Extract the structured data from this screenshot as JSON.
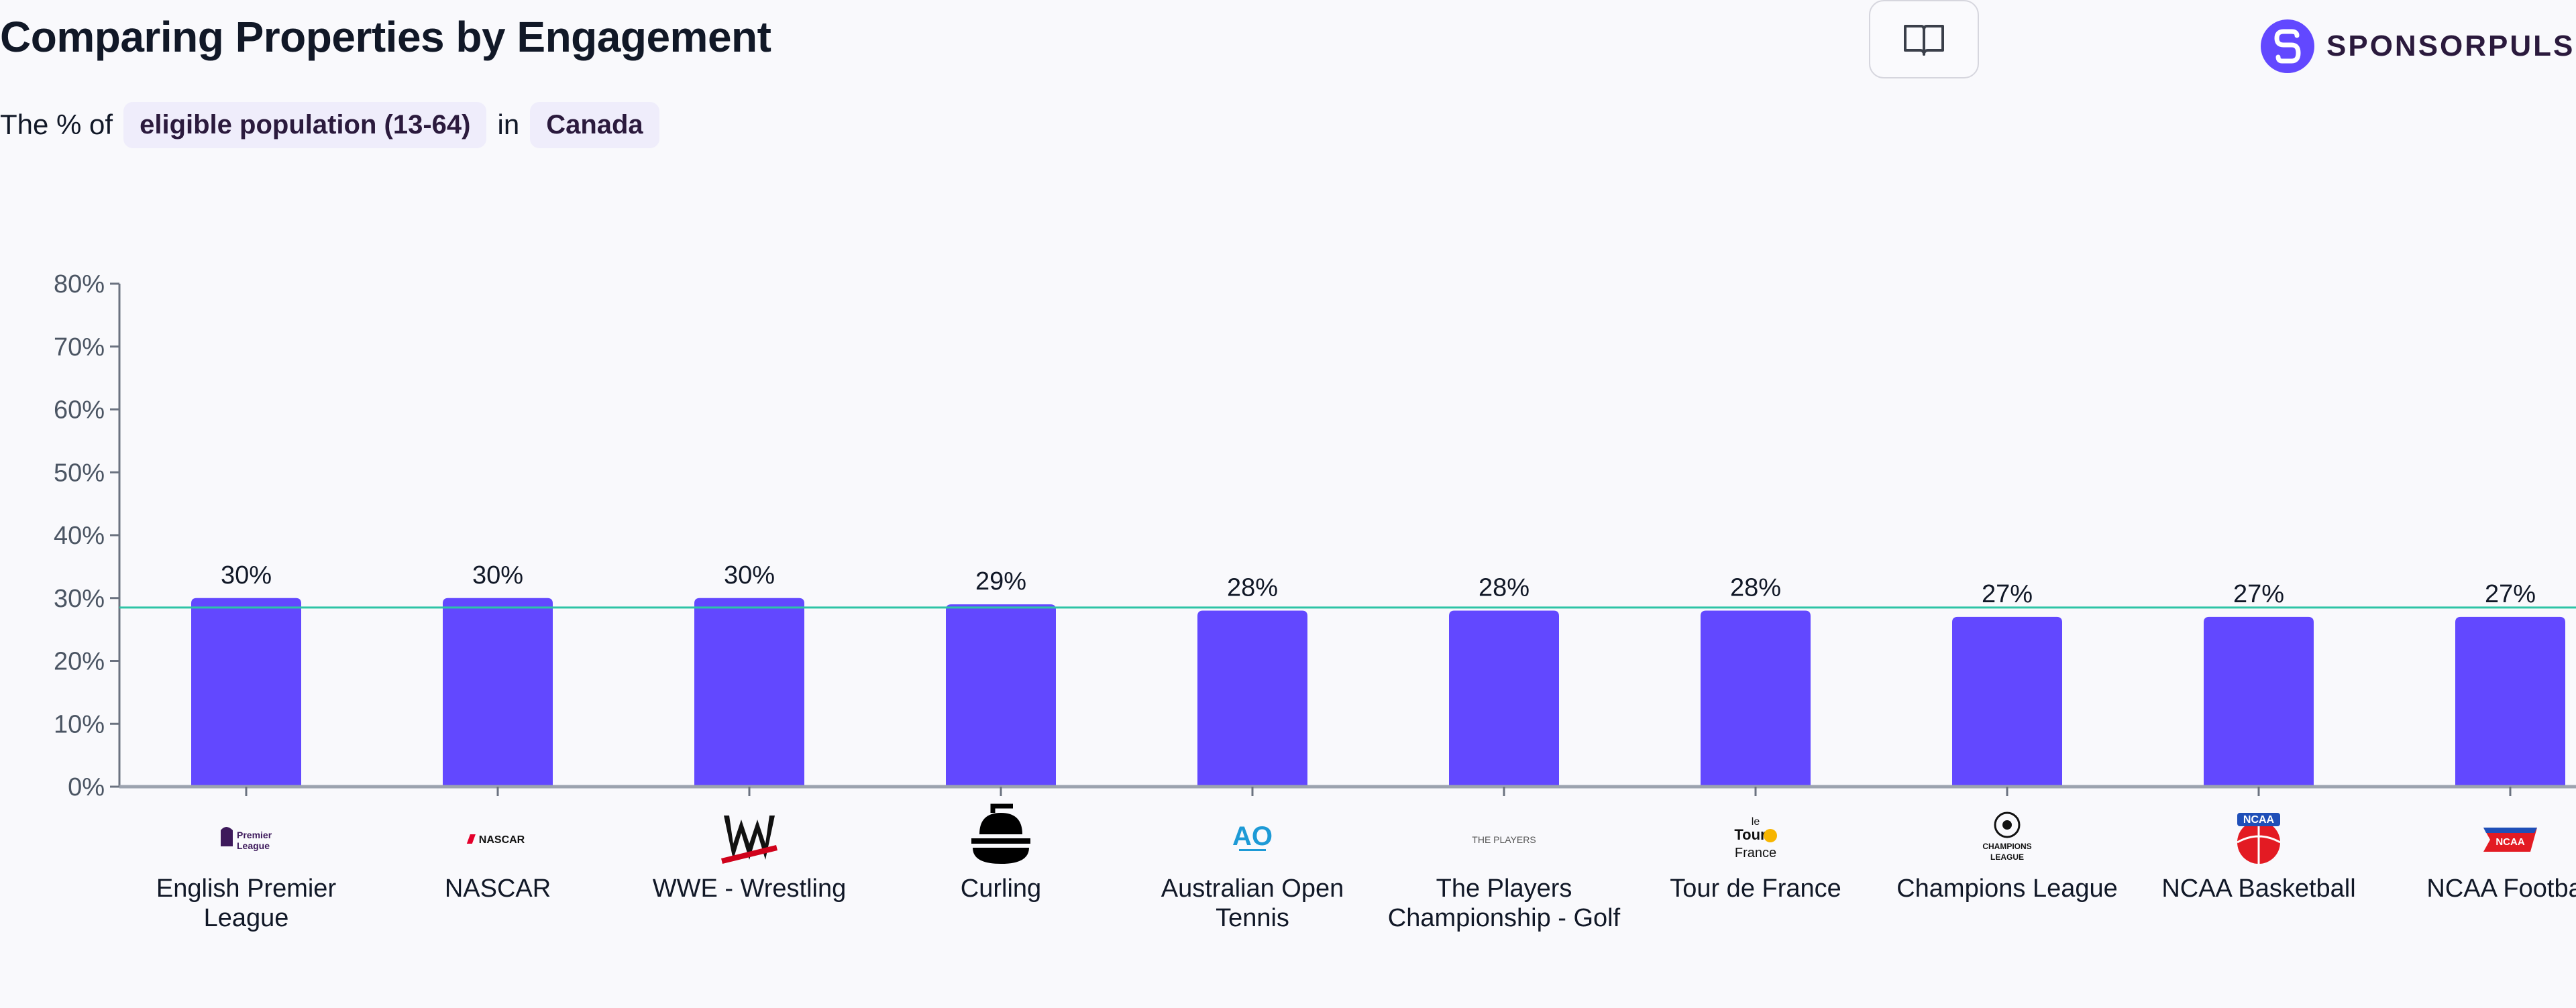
{
  "header": {
    "title": "Comparing Properties by Engagement",
    "subtitle_prefix": "The % of",
    "metric_pill": "eligible population (13-64)",
    "subtitle_mid": "in",
    "region_pill": "Canada",
    "guide_icon": "book-open-icon"
  },
  "brand": {
    "name": "SPONSORPULSE",
    "logo_icon": "sponsorpulse-logo-icon",
    "color": "#6248ff"
  },
  "chart_data": {
    "type": "bar",
    "title": "",
    "xlabel": "",
    "ylabel": "",
    "ylim": [
      0,
      80
    ],
    "yticks": [
      0,
      10,
      20,
      30,
      40,
      50,
      60,
      70,
      80
    ],
    "ytick_suffix": "%",
    "grid": false,
    "bar_color": "#6248ff",
    "reference_line": {
      "value": 28.5,
      "color": "#2ec4a6"
    },
    "categories": [
      "English Premier League",
      "NASCAR",
      "WWE - Wrestling",
      "Curling",
      "Australian Open Tennis",
      "The Players Championship - Golf",
      "Tour de France",
      "Champions League",
      "NCAA Basketball",
      "NCAA Football"
    ],
    "category_lines": [
      [
        "English Premier",
        "League"
      ],
      [
        "NASCAR"
      ],
      [
        "WWE - Wrestling"
      ],
      [
        "Curling"
      ],
      [
        "Australian Open",
        "Tennis"
      ],
      [
        "The Players",
        "Championship - Golf"
      ],
      [
        "Tour de France"
      ],
      [
        "Champions League"
      ],
      [
        "NCAA Basketball"
      ],
      [
        "NCAA Football"
      ]
    ],
    "values": [
      30,
      30,
      30,
      29,
      28,
      28,
      28,
      27,
      27,
      27
    ],
    "value_labels": [
      "30%",
      "30%",
      "30%",
      "29%",
      "28%",
      "28%",
      "28%",
      "27%",
      "27%",
      "27%"
    ],
    "logo_texts": [
      "Premier League",
      "NASCAR",
      "",
      "",
      "AO",
      "THE PLAYERS",
      "le Tour de France",
      "CHAMPIONS LEAGUE",
      "NCAA",
      "NCAA"
    ],
    "logos": [
      "premier-league-logo-icon",
      "nascar-logo-icon",
      "wwe-logo-icon",
      "curling-stone-icon",
      "australian-open-logo-icon",
      "the-players-logo-icon",
      "tour-de-france-logo-icon",
      "champions-league-logo-icon",
      "ncaa-basketball-logo-icon",
      "ncaa-football-logo-icon"
    ]
  }
}
